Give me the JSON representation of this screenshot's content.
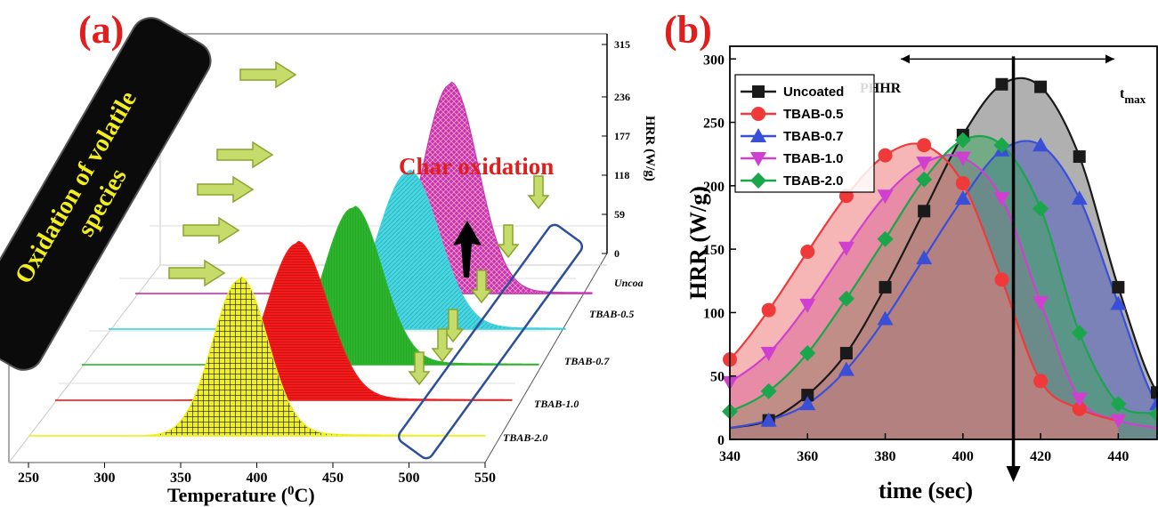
{
  "panel_a": {
    "label": "(a)",
    "xlabel": "Temperature (",
    "xlabel_sup": "0",
    "xlabel_unit": "C)",
    "zlabel": "HRR (W/g)",
    "black_box_text_line1": "Oxidation of volatile",
    "black_box_text_line2": "species",
    "char_text": "Char    oxidation",
    "colors": {
      "black_box": "#0b0b0b",
      "box_outline": "#2b4f9a",
      "arrow_fill": "#c6dc6a",
      "arrow_stroke": "#8aa42f",
      "up_arrow": "#000000",
      "grid": "#c8c8c8"
    }
  },
  "panel_b": {
    "label": "(b)",
    "phhr_label": "PHHR",
    "tmax_label": "t",
    "tmax_sub": "max",
    "tmax_time": 413
  },
  "chart_data": [
    {
      "type": "area",
      "title": "",
      "xlabel": "Temperature (0C)",
      "ylabel": "HRR (W/g)",
      "xlim": [
        250,
        550
      ],
      "x_ticks": [
        250,
        300,
        350,
        400,
        450,
        500,
        550
      ],
      "z_ticks": [
        0,
        59,
        118,
        177,
        236,
        315
      ],
      "series": [
        {
          "name": "TBAB-2.0",
          "color": "#f0ef20",
          "peak_temp": 389,
          "peak_hrr": 236
        },
        {
          "name": "TBAB-1.0",
          "color": "#f21c1c",
          "peak_temp": 409,
          "peak_hrr": 236
        },
        {
          "name": "TBAB-0.7",
          "color": "#2cb52c",
          "peak_temp": 428,
          "peak_hrr": 236
        },
        {
          "name": "TBAB-0.5",
          "color": "#3fd2de",
          "peak_temp": 447,
          "peak_hrr": 236
        },
        {
          "name": "Uncoa",
          "color": "#c832b4",
          "peak_temp": 457,
          "peak_hrr": 315
        }
      ]
    },
    {
      "type": "line",
      "title": "",
      "xlabel": "time (sec)",
      "ylabel": "HRR (W/g)",
      "xlim": [
        340,
        450
      ],
      "ylim": [
        0,
        310
      ],
      "x_ticks": [
        340,
        360,
        380,
        400,
        420,
        440
      ],
      "y_ticks": [
        0,
        50,
        100,
        150,
        200,
        250,
        300
      ],
      "legend_position": "top-left",
      "grid": false,
      "series": [
        {
          "name": "Uncoated",
          "color": "#1a1a1a",
          "fill": "#707070",
          "marker": "square",
          "x": [
            350,
            360,
            370,
            380,
            390,
            400,
            410,
            420,
            430,
            440,
            450
          ],
          "y": [
            15,
            35,
            68,
            120,
            180,
            240,
            280,
            278,
            223,
            120,
            37
          ]
        },
        {
          "name": "TBAB-0.5",
          "color": "#f03a3a",
          "fill": "#f07a7a",
          "marker": "circle",
          "x": [
            340,
            350,
            360,
            370,
            380,
            390,
            400,
            410,
            420,
            430
          ],
          "y": [
            63,
            102,
            148,
            192,
            224,
            232,
            202,
            126,
            46,
            24
          ]
        },
        {
          "name": "TBAB-0.7",
          "color": "#3a4fd8",
          "fill": "#4f5cc0",
          "marker": "triangle-up",
          "x": [
            350,
            360,
            370,
            380,
            390,
            400,
            410,
            420,
            430,
            440,
            450
          ],
          "y": [
            15,
            28,
            55,
            95,
            143,
            190,
            228,
            232,
            190,
            107,
            28
          ]
        },
        {
          "name": "TBAB-1.0",
          "color": "#d040d0",
          "fill": "#c050c0",
          "marker": "triangle-down",
          "x": [
            340,
            350,
            360,
            370,
            380,
            390,
            400,
            410,
            420,
            430,
            440
          ],
          "y": [
            45,
            68,
            106,
            151,
            192,
            218,
            222,
            190,
            108,
            32,
            15
          ]
        },
        {
          "name": "TBAB-2.0",
          "color": "#1aa64a",
          "fill": "#40a860",
          "marker": "diamond",
          "x": [
            340,
            350,
            360,
            370,
            380,
            390,
            400,
            410,
            420,
            430,
            440,
            450
          ],
          "y": [
            22,
            38,
            68,
            111,
            158,
            205,
            236,
            232,
            182,
            84,
            28,
            20
          ]
        }
      ]
    }
  ]
}
